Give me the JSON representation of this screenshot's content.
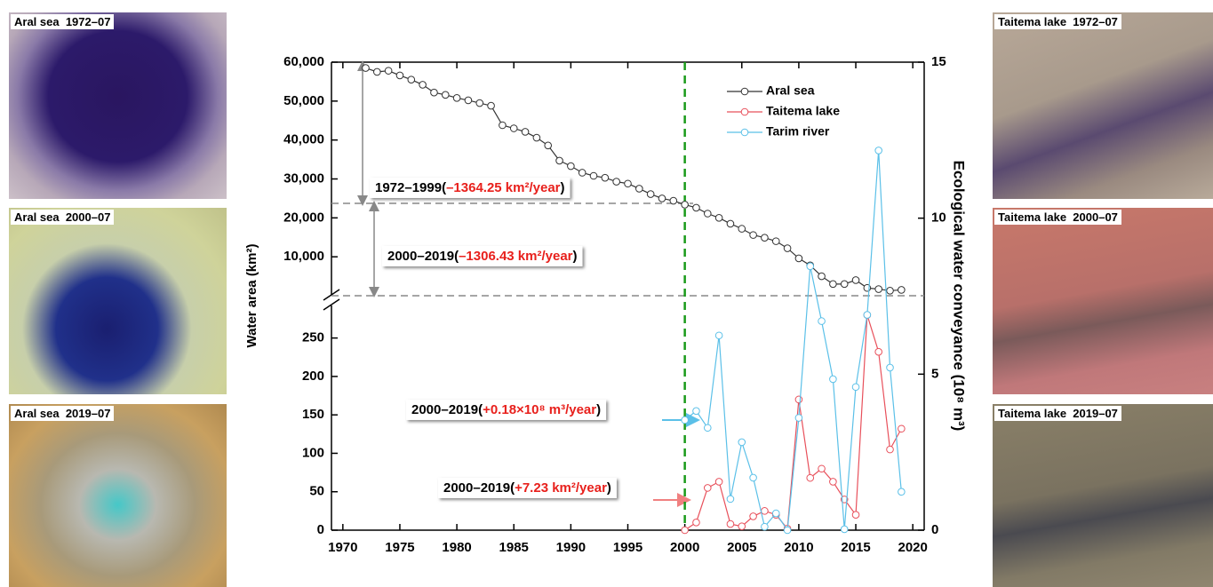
{
  "panels": {
    "left": [
      "Aral sea  1972–07",
      "Aral sea  2000–07",
      "Aral sea  2019–07"
    ],
    "right": [
      "Taitema lake  1972–07",
      "Taitema lake  2000–07",
      "Taitema lake  2019–07"
    ]
  },
  "chart_data": {
    "type": "line",
    "y_label": "Water area (km²)",
    "y2_label": "Ecological water conveyance (10⁸ m³)",
    "x": [
      1972,
      1973,
      1974,
      1975,
      1976,
      1977,
      1978,
      1979,
      1980,
      1981,
      1982,
      1983,
      1984,
      1985,
      1986,
      1987,
      1988,
      1989,
      1990,
      1991,
      1992,
      1993,
      1994,
      1995,
      1996,
      1997,
      1998,
      1999,
      2000,
      2001,
      2002,
      2003,
      2004,
      2005,
      2006,
      2007,
      2008,
      2009,
      2010,
      2011,
      2012,
      2013,
      2014,
      2015,
      2016,
      2017,
      2018,
      2019
    ],
    "xlim": [
      1969,
      2021
    ],
    "xticks": [
      1970,
      1975,
      1980,
      1985,
      1990,
      1995,
      2000,
      2005,
      2010,
      2015,
      2020
    ],
    "ylim_upper": [
      0,
      60000
    ],
    "yticks_upper": [
      {
        "value": 10000,
        "label": "10,000"
      },
      {
        "value": 20000,
        "label": "20,000"
      },
      {
        "value": 30000,
        "label": "30,000"
      },
      {
        "value": 40000,
        "label": "40,000"
      },
      {
        "value": 50000,
        "label": "50,000"
      },
      {
        "value": 60000,
        "label": "60,000"
      }
    ],
    "ylim": [
      0,
      290
    ],
    "yticks": [
      0,
      50,
      100,
      150,
      200,
      250
    ],
    "y2lim": [
      0,
      15
    ],
    "y2ticks": [
      0,
      5,
      10,
      15
    ],
    "vline": 2000,
    "series": [
      {
        "name": "Aral sea",
        "color": "#333333",
        "axis": "upper",
        "values": [
          58500,
          57500,
          57800,
          56600,
          55500,
          54200,
          52200,
          51600,
          50800,
          50200,
          49500,
          48800,
          43800,
          43000,
          42100,
          40600,
          38600,
          34700,
          33300,
          31600,
          30800,
          30300,
          29300,
          28800,
          27500,
          26100,
          25000,
          24400,
          23400,
          22600,
          21100,
          20000,
          18500,
          17200,
          15600,
          14900,
          14000,
          12200,
          9600,
          7800,
          5000,
          3000,
          3000,
          4000,
          2000,
          1700,
          1300,
          1500
        ]
      },
      {
        "name": "Taitema lake",
        "color": "#e8505b",
        "axis": "y",
        "values": [
          null,
          null,
          null,
          null,
          null,
          null,
          null,
          null,
          null,
          null,
          null,
          null,
          null,
          null,
          null,
          null,
          null,
          null,
          null,
          null,
          null,
          null,
          null,
          null,
          null,
          null,
          null,
          null,
          0,
          10,
          55,
          63,
          8,
          5,
          18,
          25,
          20,
          2,
          170,
          68,
          80,
          63,
          40,
          20,
          280,
          232,
          105,
          132
        ]
      },
      {
        "name": "Tarim river",
        "color": "#5bc0e8",
        "axis": "y2",
        "values": [
          null,
          null,
          null,
          null,
          null,
          null,
          null,
          null,
          null,
          null,
          null,
          null,
          null,
          null,
          null,
          null,
          null,
          null,
          null,
          null,
          null,
          null,
          null,
          null,
          null,
          null,
          null,
          null,
          3.53,
          3.82,
          3.28,
          6.24,
          1.0,
          2.82,
          1.68,
          0.11,
          0.54,
          0,
          3.6,
          8.46,
          6.7,
          4.84,
          0.03,
          4.59,
          6.9,
          12.17,
          5.21,
          1.23
        ]
      }
    ],
    "annotations": [
      [
        "1972–1999(",
        "–1364.25 km²/year",
        ")"
      ],
      [
        "2000–2019(",
        "–1306.43 km²/year",
        ")"
      ],
      [
        "2000–2019(",
        "+0.18×10⁸ m³/year",
        ")"
      ],
      [
        "2000–2019(",
        "+7.23 km²/year",
        ")"
      ]
    ]
  }
}
